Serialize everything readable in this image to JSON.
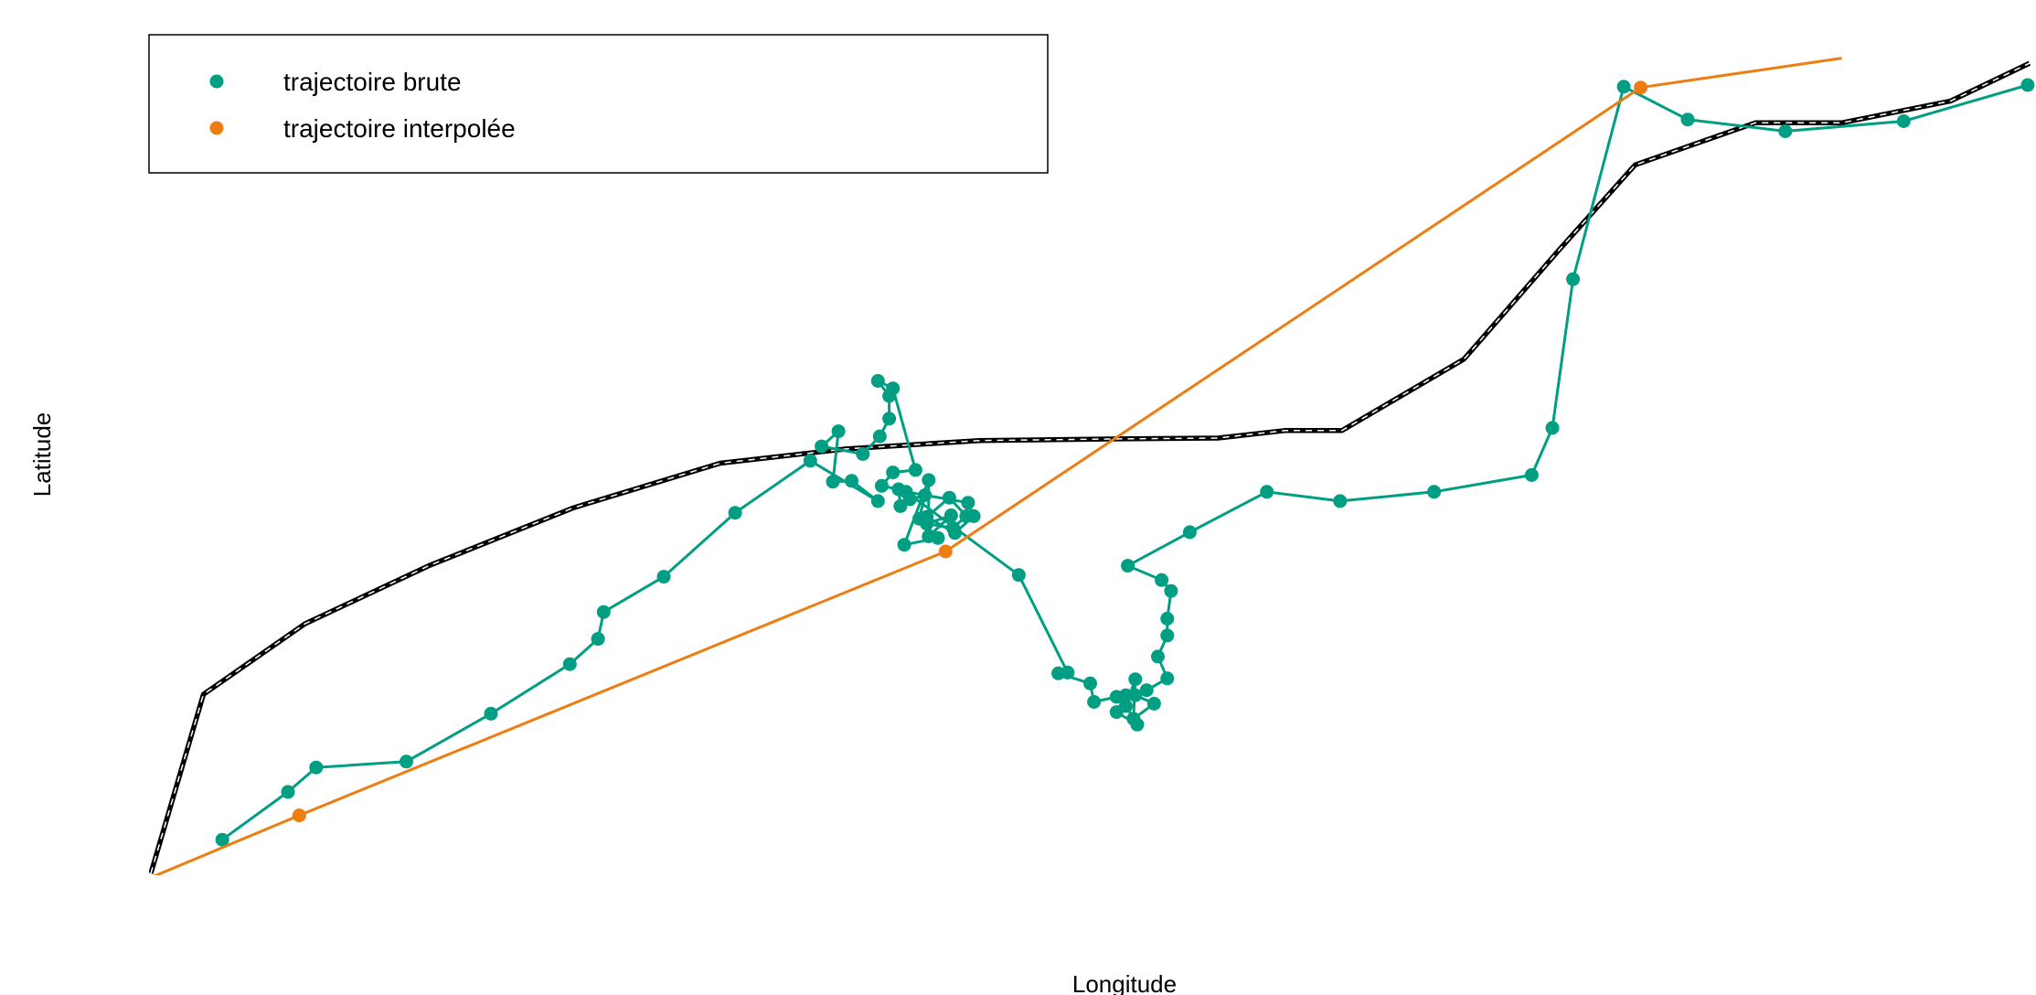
{
  "chart_data": {
    "type": "line",
    "title": "",
    "xlabel": "Longitude",
    "ylabel": "Latitude",
    "axes_drawn": false,
    "grid": false,
    "legend_position": "top-left",
    "legend": [
      {
        "label": "trajectoire brute",
        "color": "#009E83"
      },
      {
        "label": "trajectoire interpolée",
        "color": "#EE7D11"
      }
    ],
    "xlim": [
      0,
      1
    ],
    "ylim": [
      0,
      1
    ],
    "series": [
      {
        "name": "trajectoire brute",
        "color": "#009E83",
        "points": [
          [
            0.038,
            0.04
          ],
          [
            0.073,
            0.097
          ],
          [
            0.088,
            0.126
          ],
          [
            0.136,
            0.133
          ],
          [
            0.181,
            0.19
          ],
          [
            0.223,
            0.249
          ],
          [
            0.238,
            0.279
          ],
          [
            0.241,
            0.311
          ],
          [
            0.273,
            0.353
          ],
          [
            0.311,
            0.429
          ],
          [
            0.351,
            0.491
          ],
          [
            0.387,
            0.443
          ],
          [
            0.373,
            0.467
          ],
          [
            0.363,
            0.466
          ],
          [
            0.366,
            0.526
          ],
          [
            0.357,
            0.508
          ],
          [
            0.379,
            0.499
          ],
          [
            0.388,
            0.52
          ],
          [
            0.393,
            0.541
          ],
          [
            0.393,
            0.568
          ],
          [
            0.387,
            0.586
          ],
          [
            0.395,
            0.577
          ],
          [
            0.407,
            0.48
          ],
          [
            0.395,
            0.477
          ],
          [
            0.389,
            0.461
          ],
          [
            0.398,
            0.457
          ],
          [
            0.399,
            0.437
          ],
          [
            0.404,
            0.445
          ],
          [
            0.412,
            0.45
          ],
          [
            0.409,
            0.422
          ],
          [
            0.419,
            0.399
          ],
          [
            0.401,
            0.391
          ],
          [
            0.414,
            0.468
          ],
          [
            0.414,
            0.401
          ],
          [
            0.426,
            0.426
          ],
          [
            0.413,
            0.416
          ],
          [
            0.427,
            0.411
          ],
          [
            0.434,
            0.425
          ],
          [
            0.425,
            0.447
          ],
          [
            0.413,
            0.424
          ],
          [
            0.428,
            0.405
          ],
          [
            0.438,
            0.425
          ],
          [
            0.435,
            0.441
          ],
          [
            0.402,
            0.454
          ],
          [
            0.462,
            0.355
          ],
          [
            0.488,
            0.239
          ],
          [
            0.483,
            0.238
          ],
          [
            0.5,
            0.226
          ],
          [
            0.502,
            0.204
          ],
          [
            0.514,
            0.21
          ],
          [
            0.519,
            0.212
          ],
          [
            0.514,
            0.192
          ],
          [
            0.525,
            0.177
          ],
          [
            0.519,
            0.199
          ],
          [
            0.524,
            0.231
          ],
          [
            0.523,
            0.184
          ],
          [
            0.534,
            0.202
          ],
          [
            0.524,
            0.212
          ],
          [
            0.53,
            0.218
          ],
          [
            0.541,
            0.232
          ],
          [
            0.536,
            0.258
          ],
          [
            0.541,
            0.283
          ],
          [
            0.541,
            0.303
          ],
          [
            0.543,
            0.336
          ],
          [
            0.538,
            0.349
          ],
          [
            0.52,
            0.366
          ],
          [
            0.553,
            0.406
          ],
          [
            0.594,
            0.454
          ],
          [
            0.633,
            0.443
          ],
          [
            0.683,
            0.454
          ],
          [
            0.735,
            0.474
          ],
          [
            0.746,
            0.53
          ],
          [
            0.757,
            0.707
          ],
          [
            0.784,
            0.936
          ],
          [
            0.818,
            0.897
          ],
          [
            0.87,
            0.883
          ],
          [
            0.933,
            0.895
          ],
          [
            0.999,
            0.938
          ]
        ]
      },
      {
        "name": "trajectoire interpolée",
        "color": "#EE7D11",
        "points": [
          [
            0.0,
            -0.005
          ],
          [
            0.079,
            0.069
          ],
          [
            0.423,
            0.383
          ],
          [
            0.793,
            0.935
          ],
          [
            0.9,
            0.97
          ]
        ],
        "markers": [
          [
            0.079,
            0.069
          ],
          [
            0.423,
            0.383
          ],
          [
            0.793,
            0.935
          ]
        ]
      },
      {
        "name": "",
        "color": "#000000",
        "style": "dashed-outline",
        "points": [
          [
            0.0,
            0.0
          ],
          [
            0.028,
            0.213
          ],
          [
            0.082,
            0.297
          ],
          [
            0.148,
            0.366
          ],
          [
            0.225,
            0.435
          ],
          [
            0.303,
            0.488
          ],
          [
            0.37,
            0.505
          ],
          [
            0.441,
            0.515
          ],
          [
            0.516,
            0.517
          ],
          [
            0.568,
            0.518
          ],
          [
            0.604,
            0.527
          ],
          [
            0.634,
            0.527
          ],
          [
            0.699,
            0.612
          ],
          [
            0.75,
            0.743
          ],
          [
            0.79,
            0.843
          ],
          [
            0.854,
            0.893
          ],
          [
            0.9,
            0.893
          ],
          [
            0.958,
            0.919
          ],
          [
            1.0,
            0.964
          ]
        ]
      }
    ]
  }
}
